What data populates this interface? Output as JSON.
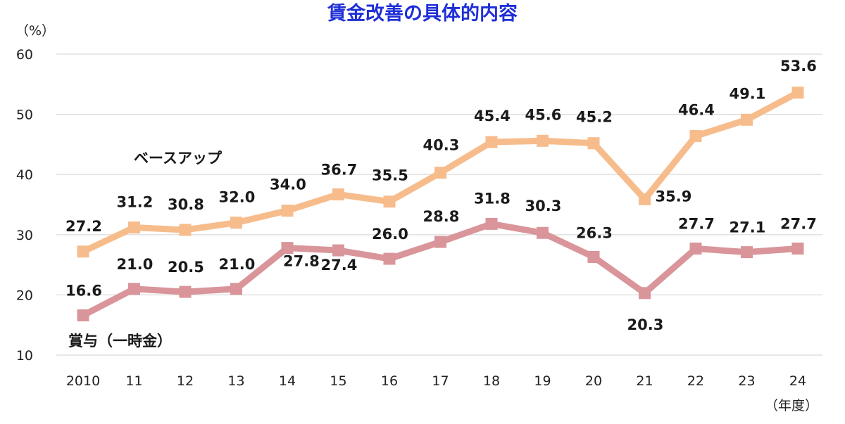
{
  "chart_data": {
    "type": "line",
    "title": "賃金改善の具体的内容",
    "ylabel": "（%）",
    "xlabel": "（年度）",
    "categories": [
      "2010",
      "11",
      "12",
      "13",
      "14",
      "15",
      "16",
      "17",
      "18",
      "19",
      "20",
      "21",
      "22",
      "23",
      "24"
    ],
    "ylim": [
      10,
      60
    ],
    "yticks": [
      10,
      20,
      30,
      40,
      50,
      60
    ],
    "grid": true,
    "series": [
      {
        "name": "ベースアップ",
        "color": "#f7bc8c",
        "values": [
          27.2,
          31.2,
          30.8,
          32.0,
          34.0,
          36.7,
          35.5,
          40.3,
          45.4,
          45.6,
          45.2,
          35.9,
          46.4,
          49.1,
          53.6
        ],
        "labels": [
          "27.2",
          "31.2",
          "30.8",
          "32.0",
          "34.0",
          "36.7",
          "35.5",
          "40.3",
          "45.4",
          "45.6",
          "45.2",
          "35.9",
          "46.4",
          "49.1",
          "53.6"
        ]
      },
      {
        "name": "賞与（一時金）",
        "color": "#d9959a",
        "values": [
          16.6,
          21.0,
          20.5,
          21.0,
          27.8,
          27.4,
          26.0,
          28.8,
          31.8,
          30.3,
          26.3,
          20.3,
          27.7,
          27.1,
          27.7
        ],
        "labels": [
          "16.6",
          "21.0",
          "20.5",
          "21.0",
          "27.8",
          "27.4",
          "26.0",
          "28.8",
          "31.8",
          "30.3",
          "26.3",
          "20.3",
          "27.7",
          "27.1",
          "27.7"
        ]
      }
    ]
  }
}
